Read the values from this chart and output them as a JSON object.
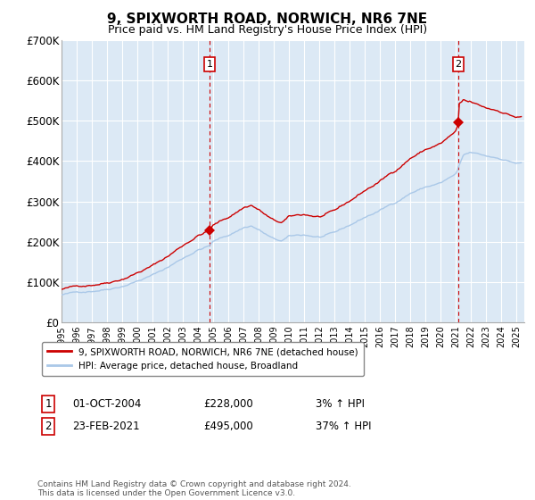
{
  "title": "9, SPIXWORTH ROAD, NORWICH, NR6 7NE",
  "subtitle": "Price paid vs. HM Land Registry's House Price Index (HPI)",
  "background_color": "#ffffff",
  "plot_bg_color": "#dce9f5",
  "title_fontsize": 11,
  "subtitle_fontsize": 9,
  "ylim": [
    0,
    700000
  ],
  "yticks": [
    0,
    100000,
    200000,
    300000,
    400000,
    500000,
    600000,
    700000
  ],
  "ytick_labels": [
    "£0",
    "£100K",
    "£200K",
    "£300K",
    "£400K",
    "£500K",
    "£600K",
    "£700K"
  ],
  "xlim_start": 1995.0,
  "xlim_end": 2025.5,
  "ann1_x": 2004.75,
  "ann1_y": 228000,
  "ann2_x": 2021.15,
  "ann2_y": 495000,
  "ann1_date": "01-OCT-2004",
  "ann1_price": "£228,000",
  "ann1_hpi": "3% ↑ HPI",
  "ann2_date": "23-FEB-2021",
  "ann2_price": "£495,000",
  "ann2_hpi": "37% ↑ HPI",
  "legend_line1": "9, SPIXWORTH ROAD, NORWICH, NR6 7NE (detached house)",
  "legend_line2": "HPI: Average price, detached house, Broadland",
  "footnote": "Contains HM Land Registry data © Crown copyright and database right 2024.\nThis data is licensed under the Open Government Licence v3.0.",
  "line_color_red": "#cc0000",
  "line_color_blue": "#aac8e8",
  "grid_color": "#ffffff",
  "ann_box_color": "#cc0000",
  "dash_color": "#cc0000"
}
